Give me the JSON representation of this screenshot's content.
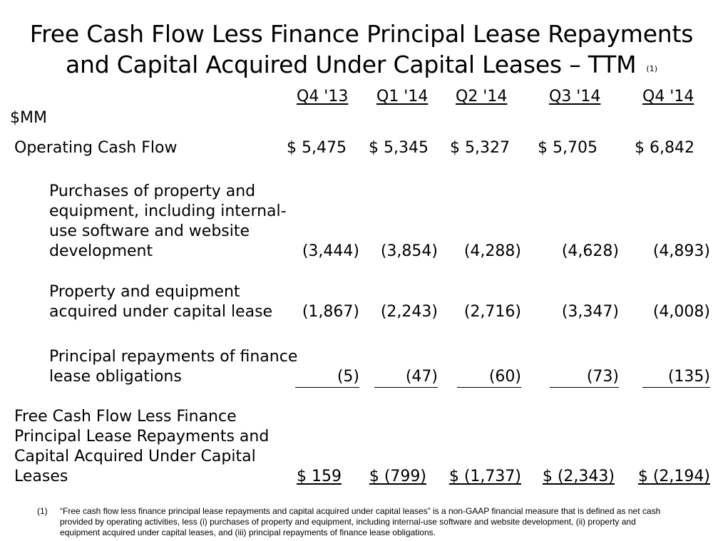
{
  "title": {
    "line1": "Free Cash Flow Less Finance Principal Lease Repayments",
    "line2": "and Capital Acquired Under Capital Leases – TTM",
    "note_ref": "(1)"
  },
  "unit": "$MM",
  "columns": [
    "Q4 '13",
    "Q1 '14",
    "Q2 '14",
    "Q3 '14",
    "Q4 '14"
  ],
  "rows": [
    {
      "label": "Operating Cash Flow",
      "values": [
        "$ 5,475",
        "$ 5,345",
        "$ 5,327",
        "$ 5,705",
        "$ 6,842"
      ]
    },
    {
      "label": "Purchases of property and equipment, including internal-use software and website development",
      "label_lines": [
        "Purchases of property and",
        "equipment, including internal-",
        "use software and website",
        "development"
      ],
      "values": [
        "(3,444)",
        "(3,854)",
        "(4,288)",
        "(4,628)",
        "(4,893)"
      ]
    },
    {
      "label": "Property and equipment acquired under capital lease",
      "label_lines": [
        "Property and equipment",
        "acquired under capital lease"
      ],
      "values": [
        "(1,867)",
        "(2,243)",
        "(2,716)",
        "(3,347)",
        "(4,008)"
      ]
    },
    {
      "label": "Principal repayments of finance lease obligations",
      "label_lines": [
        "Principal repayments of finance",
        "lease obligations"
      ],
      "values": [
        "(5)",
        "(47)",
        "(60)",
        "(73)",
        "(135)"
      ]
    },
    {
      "label": "Free Cash Flow Less Finance Principal Lease Repayments and Capital Acquired Under Capital Leases",
      "label_lines": [
        "Free Cash Flow Less Finance",
        "Principal Lease Repayments and",
        "Capital Acquired Under Capital",
        "Leases"
      ],
      "values": [
        "$ 159",
        "$ (799)",
        "$ (1,737)",
        "$ (2,343)",
        "$ (2,194)"
      ]
    }
  ],
  "footnote": {
    "num": "(1)",
    "text": "“Free cash flow less finance principal lease repayments and capital acquired under capital leases” is a non-GAAP financial measure that is defined as net cash provided by operating activities, less (i) purchases of property and equipment, including internal-use software and website development, (ii) property and equipment acquired under capital leases, and (iii) principal repayments of finance lease obligations."
  }
}
